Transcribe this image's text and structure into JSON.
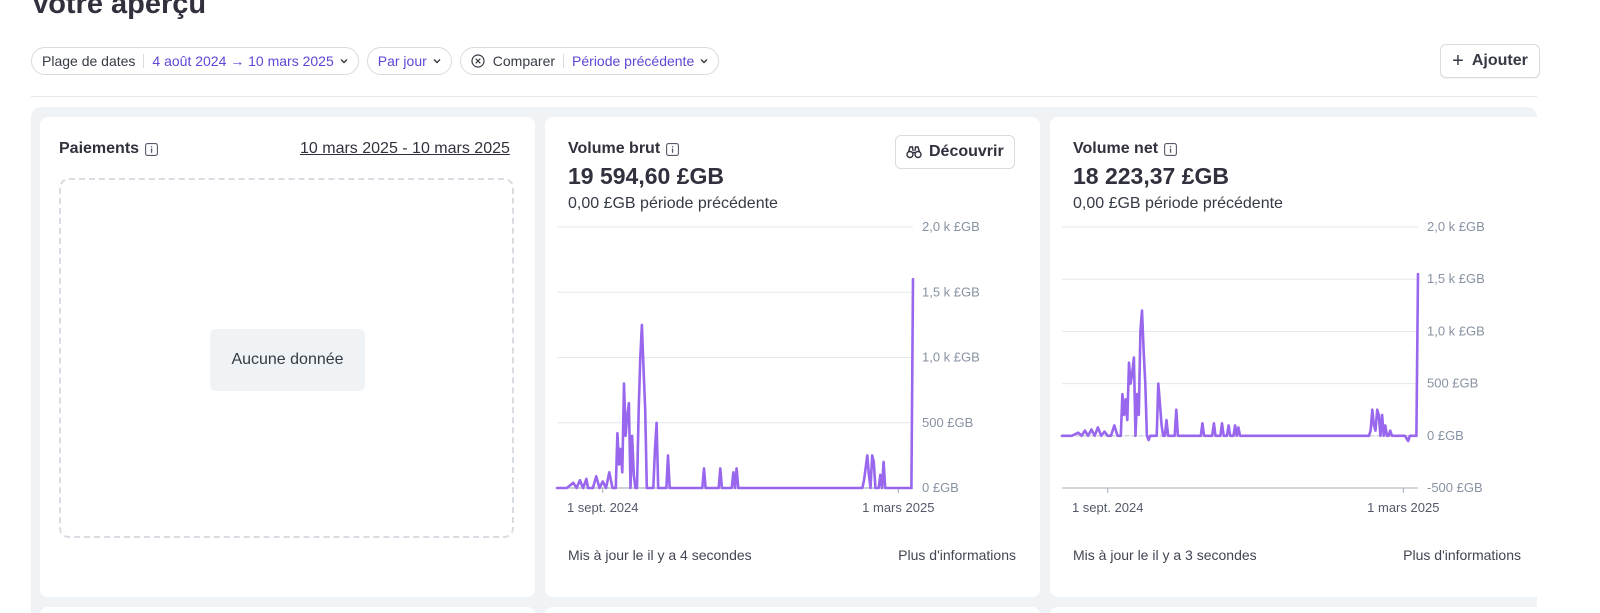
{
  "page": {
    "title": "Votre aperçu"
  },
  "filters": {
    "date_range_label": "Plage de dates",
    "date_range_value": "4 août 2024 → 10 mars 2025",
    "interval_value": "Par jour",
    "compare_label": "Comparer",
    "compare_value": "Période précédente"
  },
  "actions": {
    "add_label": "Ajouter"
  },
  "cards": {
    "payments": {
      "title": "Paiements",
      "date_range": "10 mars 2025 - 10 mars 2025",
      "empty_text": "Aucune donnée"
    },
    "gross_volume": {
      "title": "Volume brut",
      "value": "19 594,60 £GB",
      "previous": "0,00 £GB période précédente",
      "discover_label": "Découvrir",
      "updated": "Mis à jour le il y a 4 secondes",
      "more_info": "Plus d'informations"
    },
    "net_volume": {
      "title": "Volume net",
      "value": "18 223,37 £GB",
      "previous": "0,00 £GB période précédente",
      "updated": "Mis à jour le il y a 3 secondes",
      "more_info": "Plus d'informations"
    }
  },
  "icons": {
    "chevron": "chevron-down-icon",
    "compare_clear": "circle-x-icon",
    "info": "info-icon",
    "add": "plus-icon",
    "discover": "binoculars-icon"
  },
  "colors": {
    "accent": "#5e47d6",
    "series": "#9966ee"
  },
  "chart_data": [
    {
      "type": "line",
      "title": "Volume brut",
      "x_tick_labels": [
        "1 sept. 2024",
        "1 mars 2025"
      ],
      "y_tick_labels": [
        "0 £GB",
        "500 £GB",
        "1,0 k £GB",
        "1,5 k £GB",
        "2,0 k £GB"
      ],
      "y_ticks": [
        0,
        500,
        1000,
        1500,
        2000
      ],
      "ylim": [
        0,
        2000
      ],
      "x_range": [
        "2024-08-04",
        "2025-03-10"
      ],
      "x_tick_dates": [
        "2024-09-01",
        "2025-03-01"
      ],
      "series": [
        {
          "x": [
            "2024-08-04",
            "2024-08-10",
            "2024-08-14",
            "2024-08-16",
            "2024-08-18",
            "2024-08-20",
            "2024-08-22",
            "2024-08-23",
            "2024-08-24",
            "2024-08-26",
            "2024-08-28",
            "2024-08-30",
            "2024-09-01",
            "2024-09-03",
            "2024-09-05",
            "2024-09-07",
            "2024-09-09",
            "2024-09-10",
            "2024-09-11",
            "2024-09-12",
            "2024-09-13",
            "2024-09-14",
            "2024-09-15",
            "2024-09-16",
            "2024-09-17",
            "2024-09-18",
            "2024-09-19",
            "2024-09-20",
            "2024-09-21",
            "2024-09-22",
            "2024-09-23",
            "2024-09-24",
            "2024-09-25",
            "2024-09-26",
            "2024-09-27",
            "2024-09-28",
            "2024-09-29",
            "2024-09-30",
            "2024-10-01",
            "2024-10-02",
            "2024-10-03",
            "2024-10-04",
            "2024-10-05",
            "2024-10-06",
            "2024-10-07",
            "2024-10-08",
            "2024-10-09",
            "2024-10-10",
            "2024-10-11",
            "2024-10-12",
            "2024-10-13",
            "2024-10-14",
            "2024-10-15",
            "2024-10-16",
            "2024-10-17",
            "2024-10-18",
            "2024-10-20",
            "2024-10-22",
            "2024-10-24",
            "2024-10-26",
            "2024-10-28",
            "2024-10-30",
            "2024-11-01",
            "2024-11-02",
            "2024-11-03",
            "2024-11-04",
            "2024-11-05",
            "2024-11-06",
            "2024-11-07",
            "2024-11-09",
            "2024-11-11",
            "2024-11-12",
            "2024-11-13",
            "2024-11-14",
            "2024-11-15",
            "2024-11-16",
            "2024-11-17",
            "2024-11-18",
            "2024-11-19",
            "2024-11-20",
            "2024-11-21",
            "2024-11-22",
            "2024-11-23",
            "2024-11-24",
            "2024-11-26",
            "2024-12-01",
            "2024-12-15",
            "2025-01-01",
            "2025-01-15",
            "2025-02-01",
            "2025-02-04",
            "2025-02-06",
            "2025-02-07",
            "2025-02-08",
            "2025-02-09",
            "2025-02-10",
            "2025-02-11",
            "2025-02-12",
            "2025-02-13",
            "2025-02-14",
            "2025-02-15",
            "2025-02-16",
            "2025-02-17",
            "2025-02-18",
            "2025-02-19",
            "2025-02-20",
            "2025-02-21",
            "2025-02-22",
            "2025-02-23",
            "2025-02-24",
            "2025-02-25",
            "2025-02-26",
            "2025-02-28",
            "2025-03-02",
            "2025-03-04",
            "2025-03-06",
            "2025-03-07",
            "2025-03-08",
            "2025-03-09",
            "2025-03-10"
          ],
          "y": [
            0,
            0,
            40,
            0,
            60,
            0,
            70,
            0,
            0,
            0,
            90,
            0,
            50,
            0,
            120,
            0,
            0,
            420,
            180,
            300,
            120,
            800,
            400,
            550,
            650,
            0,
            400,
            100,
            0,
            0,
            600,
            1000,
            1250,
            900,
            600,
            0,
            0,
            0,
            0,
            0,
            300,
            500,
            0,
            0,
            0,
            0,
            0,
            0,
            250,
            0,
            0,
            0,
            0,
            0,
            0,
            0,
            0,
            0,
            0,
            0,
            0,
            0,
            0,
            150,
            0,
            0,
            0,
            0,
            0,
            0,
            0,
            150,
            0,
            0,
            0,
            0,
            0,
            0,
            0,
            120,
            0,
            150,
            0,
            0,
            0,
            0,
            0,
            0,
            0,
            0,
            0,
            0,
            0,
            60,
            150,
            250,
            100,
            0,
            250,
            200,
            0,
            0,
            0,
            100,
            0,
            200,
            0,
            0,
            0,
            0,
            0,
            0,
            0,
            0,
            0,
            0,
            0,
            0,
            0,
            1600
          ],
          "name": ""
        }
      ]
    },
    {
      "type": "line",
      "title": "Volume net",
      "x_tick_labels": [
        "1 sept. 2024",
        "1 mars 2025"
      ],
      "y_tick_labels": [
        "-500 £GB",
        "0 £GB",
        "500 £GB",
        "1,0 k £GB",
        "1,5 k £GB",
        "2,0 k £GB"
      ],
      "y_ticks": [
        -500,
        0,
        500,
        1000,
        1500,
        2000
      ],
      "ylim": [
        -500,
        2000
      ],
      "x_range": [
        "2024-08-04",
        "2025-03-10"
      ],
      "x_tick_dates": [
        "2024-09-01",
        "2025-03-01"
      ],
      "series": [
        {
          "x": [
            "2024-08-04",
            "2024-08-10",
            "2024-08-14",
            "2024-08-16",
            "2024-08-18",
            "2024-08-20",
            "2024-08-22",
            "2024-08-24",
            "2024-08-26",
            "2024-08-28",
            "2024-08-30",
            "2024-09-01",
            "2024-09-03",
            "2024-09-05",
            "2024-09-07",
            "2024-09-09",
            "2024-09-10",
            "2024-09-11",
            "2024-09-12",
            "2024-09-13",
            "2024-09-14",
            "2024-09-15",
            "2024-09-16",
            "2024-09-17",
            "2024-09-18",
            "2024-09-19",
            "2024-09-20",
            "2024-09-21",
            "2024-09-22",
            "2024-09-23",
            "2024-09-24",
            "2024-09-25",
            "2024-09-26",
            "2024-09-27",
            "2024-09-28",
            "2024-09-29",
            "2024-09-30",
            "2024-10-01",
            "2024-10-02",
            "2024-10-03",
            "2024-10-04",
            "2024-10-05",
            "2024-10-06",
            "2024-10-07",
            "2024-10-08",
            "2024-10-10",
            "2024-10-12",
            "2024-10-13",
            "2024-10-14",
            "2024-10-20",
            "2024-10-28",
            "2024-10-29",
            "2024-10-30",
            "2024-11-04",
            "2024-11-05",
            "2024-11-06",
            "2024-11-09",
            "2024-11-10",
            "2024-11-11",
            "2024-11-13",
            "2024-11-14",
            "2024-11-15",
            "2024-11-17",
            "2024-11-18",
            "2024-11-19",
            "2024-11-20",
            "2024-11-21",
            "2024-11-22",
            "2024-11-24",
            "2024-12-01",
            "2024-12-15",
            "2025-01-01",
            "2025-01-15",
            "2025-02-01",
            "2025-02-04",
            "2025-02-06",
            "2025-02-07",
            "2025-02-08",
            "2025-02-09",
            "2025-02-10",
            "2025-02-11",
            "2025-02-12",
            "2025-02-13",
            "2025-02-14",
            "2025-02-15",
            "2025-02-16",
            "2025-02-17",
            "2025-02-18",
            "2025-02-19",
            "2025-02-20",
            "2025-02-21",
            "2025-02-22",
            "2025-02-24",
            "2025-02-26",
            "2025-02-28",
            "2025-03-02",
            "2025-03-04",
            "2025-03-05",
            "2025-03-06",
            "2025-03-07",
            "2025-03-08",
            "2025-03-09",
            "2025-03-10"
          ],
          "y": [
            0,
            0,
            30,
            0,
            50,
            0,
            60,
            0,
            80,
            0,
            40,
            0,
            0,
            100,
            0,
            0,
            400,
            200,
            350,
            150,
            700,
            500,
            600,
            750,
            0,
            400,
            200,
            1000,
            1200,
            800,
            500,
            0,
            -40,
            0,
            0,
            0,
            0,
            0,
            500,
            300,
            100,
            0,
            0,
            150,
            0,
            0,
            0,
            250,
            0,
            0,
            0,
            120,
            0,
            0,
            120,
            0,
            0,
            120,
            0,
            0,
            100,
            0,
            0,
            100,
            0,
            80,
            0,
            0,
            0,
            0,
            0,
            0,
            0,
            0,
            0,
            0,
            0,
            0,
            50,
            250,
            100,
            50,
            250,
            200,
            0,
            200,
            0,
            100,
            0,
            0,
            50,
            0,
            0,
            0,
            0,
            0,
            -50,
            0,
            0,
            0,
            0,
            0,
            1550
          ],
          "name": ""
        }
      ]
    }
  ]
}
